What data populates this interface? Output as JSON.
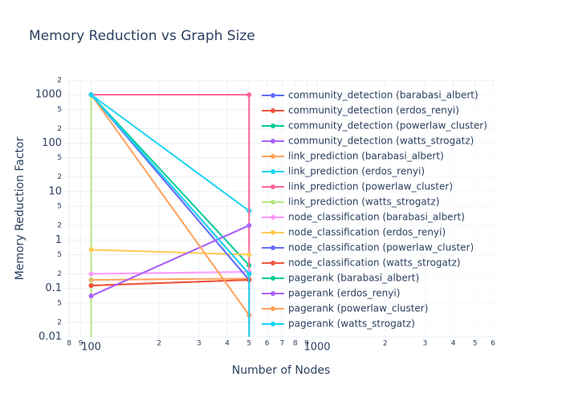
{
  "chart_data": {
    "type": "line",
    "title": "Memory Reduction vs Graph Size",
    "x_label": "Number of Nodes",
    "y_label": "Memory Reduction Factor",
    "x_scale": "log",
    "y_scale": "log",
    "grid": true,
    "legend_position": "right",
    "xlim": [
      76,
      6300
    ],
    "ylim": [
      0.01,
      2000
    ],
    "xticks": [
      {
        "value": 80,
        "label": "8"
      },
      {
        "value": 90,
        "label": "9"
      },
      100,
      {
        "value": 200,
        "label": "2"
      },
      {
        "value": 300,
        "label": "3"
      },
      {
        "value": 400,
        "label": "4"
      },
      {
        "value": 500,
        "label": "5"
      },
      {
        "value": 600,
        "label": "6"
      },
      {
        "value": 700,
        "label": "7"
      },
      {
        "value": 800,
        "label": "8"
      },
      {
        "value": 900,
        "label": "9"
      },
      1000,
      {
        "value": 2000,
        "label": "2"
      },
      {
        "value": 3000,
        "label": "3"
      },
      {
        "value": 4000,
        "label": "4"
      },
      {
        "value": 5000,
        "label": "5"
      },
      {
        "value": 6000,
        "label": "6"
      }
    ],
    "yticks": [
      0.01,
      {
        "value": 0.02,
        "label": "2"
      },
      {
        "value": 0.05,
        "label": "5"
      },
      0.1,
      {
        "value": 0.2,
        "label": "2"
      },
      {
        "value": 0.5,
        "label": "5"
      },
      1,
      {
        "value": 2,
        "label": "2"
      },
      {
        "value": 5,
        "label": "5"
      },
      10,
      {
        "value": 20,
        "label": "2"
      },
      {
        "value": 50,
        "label": "5"
      },
      100,
      {
        "value": 200,
        "label": "2"
      },
      {
        "value": 500,
        "label": "5"
      },
      1000,
      {
        "value": 2000,
        "label": "2"
      }
    ],
    "series": [
      {
        "name": "community_detection (barabasi_albert)",
        "color": "#636efa",
        "x": [
          100,
          500
        ],
        "values": [
          1000,
          0.15
        ]
      },
      {
        "name": "community_detection (erdos_renyi)",
        "color": "#EF553B",
        "x": [
          100,
          500
        ],
        "values": [
          0.115,
          0.15
        ]
      },
      {
        "name": "community_detection (powerlaw_cluster)",
        "color": "#00cc96",
        "x": [
          100,
          500
        ],
        "values": [
          1000,
          0.3
        ]
      },
      {
        "name": "community_detection (watts_strogatz)",
        "color": "#ab63fa",
        "x": [
          100,
          500
        ],
        "values": [
          0.07,
          2
        ]
      },
      {
        "name": "link_prediction (barabasi_albert)",
        "color": "#FFA15A",
        "x": [
          100,
          500
        ],
        "values": [
          0.15,
          0.16
        ]
      },
      {
        "name": "link_prediction (erdos_renyi)",
        "color": "#19d3f3",
        "x": [
          100,
          500
        ],
        "values": [
          1000,
          4
        ]
      },
      {
        "name": "link_prediction (powerlaw_cluster)",
        "color": "#FF6692",
        "x": [
          100,
          500,
          500
        ],
        "values": [
          1000,
          1000,
          0.001
        ]
      },
      {
        "name": "link_prediction (watts_strogatz)",
        "color": "#B6E880",
        "x": [
          100,
          100
        ],
        "values": [
          1000,
          0.001
        ]
      },
      {
        "name": "node_classification (barabasi_albert)",
        "color": "#FF97FF",
        "x": [
          100,
          500
        ],
        "values": [
          0.2,
          0.22
        ]
      },
      {
        "name": "node_classification (erdos_renyi)",
        "color": "#FECB52",
        "x": [
          100,
          500
        ],
        "values": [
          0.63,
          0.5
        ]
      },
      {
        "name": "node_classification (powerlaw_cluster)",
        "color": "#636efa",
        "x": [
          100,
          500
        ],
        "values": [
          1000,
          0.15
        ]
      },
      {
        "name": "node_classification (watts_strogatz)",
        "color": "#EF553B",
        "x": [
          100,
          500
        ],
        "values": [
          0.115,
          0.15
        ]
      },
      {
        "name": "pagerank (barabasi_albert)",
        "color": "#00cc96",
        "x": [
          100,
          500
        ],
        "values": [
          1000,
          0.2
        ]
      },
      {
        "name": "pagerank (erdos_renyi)",
        "color": "#ab63fa",
        "x": [
          100,
          500
        ],
        "values": [
          0.07,
          2
        ]
      },
      {
        "name": "pagerank (powerlaw_cluster)",
        "color": "#FFA15A",
        "x": [
          100,
          500
        ],
        "values": [
          1000,
          0.028
        ]
      },
      {
        "name": "pagerank (watts_strogatz)",
        "color": "#19d3f3",
        "x": [
          100,
          500,
          500
        ],
        "values": [
          1000,
          0.2,
          0.001
        ]
      }
    ]
  }
}
